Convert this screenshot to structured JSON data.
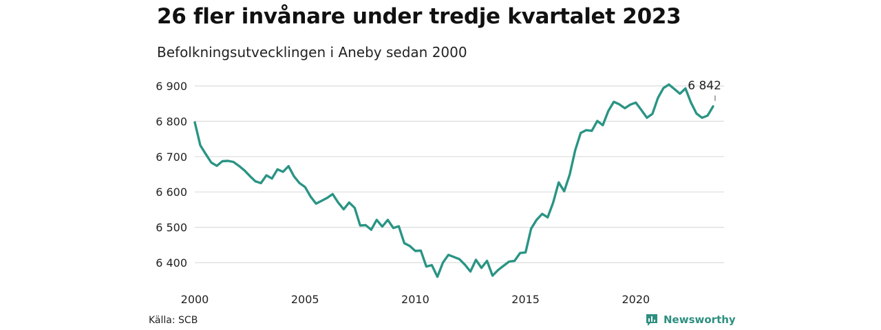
{
  "header": {
    "title": "26 fler invånare under tredje kvartalet 2023",
    "subtitle": "Befolkningsutvecklingen i Aneby sedan 2000"
  },
  "footer": {
    "source": "Källa: SCB",
    "brand": "Newsworthy",
    "brand_icon": "newsworthy-logo-icon",
    "brand_color": "#2e8f80"
  },
  "chart_data": {
    "type": "line",
    "title": "26 fler invånare under tredje kvartalet 2023",
    "subtitle": "Befolkningsutvecklingen i Aneby sedan 2000",
    "xlabel": "",
    "ylabel": "",
    "xlim": [
      2000,
      2023.75
    ],
    "ylim": [
      6350,
      6920
    ],
    "x_ticks": [
      2000,
      2005,
      2010,
      2015,
      2020
    ],
    "x_tick_labels": [
      "2000",
      "2005",
      "2010",
      "2015",
      "2020"
    ],
    "y_ticks": [
      6400,
      6500,
      6600,
      6700,
      6800,
      6900
    ],
    "y_tick_labels": [
      "6 400",
      "6 500",
      "6 600",
      "6 700",
      "6 800",
      "6 900"
    ],
    "grid": true,
    "line_color": "#2a9484",
    "series": [
      {
        "x": [
          2000.0,
          2000.25,
          2000.5,
          2000.75,
          2001.0,
          2001.25,
          2001.5,
          2001.75,
          2002.0,
          2002.25,
          2002.5,
          2002.75,
          2003.0,
          2003.25,
          2003.5,
          2003.75,
          2004.0,
          2004.25,
          2004.5,
          2004.75,
          2005.0,
          2005.25,
          2005.5,
          2005.75,
          2006.0,
          2006.25,
          2006.5,
          2006.75,
          2007.0,
          2007.25,
          2007.5,
          2007.75,
          2008.0,
          2008.25,
          2008.5,
          2008.75,
          2009.0,
          2009.25,
          2009.5,
          2009.75,
          2010.0,
          2010.25,
          2010.5,
          2010.75,
          2011.0,
          2011.25,
          2011.5,
          2011.75,
          2012.0,
          2012.25,
          2012.5,
          2012.75,
          2013.0,
          2013.25,
          2013.5,
          2013.75,
          2014.0,
          2014.25,
          2014.5,
          2014.75,
          2015.0,
          2015.25,
          2015.5,
          2015.75,
          2016.0,
          2016.25,
          2016.5,
          2016.75,
          2017.0,
          2017.25,
          2017.5,
          2017.75,
          2018.0,
          2018.25,
          2018.5,
          2018.75,
          2019.0,
          2019.25,
          2019.5,
          2019.75,
          2020.0,
          2020.25,
          2020.5,
          2020.75,
          2021.0,
          2021.25,
          2021.5,
          2021.75,
          2022.0,
          2022.25,
          2022.5,
          2022.75,
          2023.0,
          2023.25,
          2023.5
        ],
        "values": [
          6797,
          6732,
          6707,
          6683,
          6674,
          6687,
          6688,
          6685,
          6674,
          6661,
          6645,
          6630,
          6625,
          6647,
          6638,
          6664,
          6657,
          6673,
          6644,
          6625,
          6614,
          6587,
          6567,
          6575,
          6583,
          6594,
          6570,
          6551,
          6570,
          6555,
          6505,
          6506,
          6493,
          6521,
          6502,
          6521,
          6498,
          6503,
          6455,
          6447,
          6433,
          6434,
          6389,
          6393,
          6360,
          6400,
          6422,
          6416,
          6410,
          6394,
          6375,
          6408,
          6385,
          6405,
          6363,
          6379,
          6391,
          6403,
          6405,
          6427,
          6429,
          6496,
          6521,
          6538,
          6528,
          6570,
          6627,
          6602,
          6649,
          6718,
          6767,
          6775,
          6773,
          6801,
          6789,
          6829,
          6855,
          6848,
          6837,
          6847,
          6853,
          6832,
          6810,
          6821,
          6866,
          6894,
          6904,
          6891,
          6878,
          6893,
          6853,
          6822,
          6810,
          6816,
          6842
        ]
      }
    ],
    "annotations": [
      {
        "x": 2023.5,
        "text": "6 842"
      }
    ]
  }
}
